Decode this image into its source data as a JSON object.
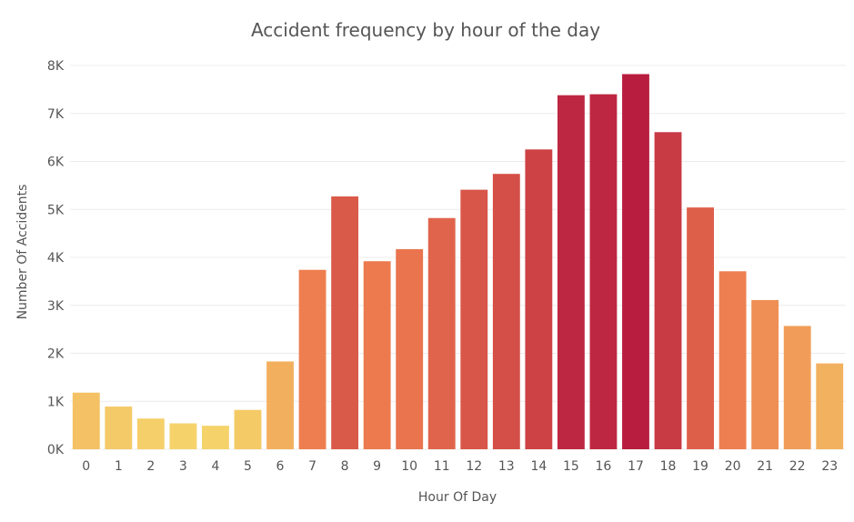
{
  "chart_data": {
    "type": "bar",
    "title": "Accident frequency by hour of the day",
    "xlabel": "Hour Of Day",
    "ylabel": "Number Of Accidents",
    "categories": [
      "0",
      "1",
      "2",
      "3",
      "4",
      "5",
      "6",
      "7",
      "8",
      "9",
      "10",
      "11",
      "12",
      "13",
      "14",
      "15",
      "16",
      "17",
      "18",
      "19",
      "20",
      "21",
      "22",
      "23"
    ],
    "values": [
      1180,
      890,
      640,
      540,
      490,
      820,
      1830,
      3740,
      5270,
      3920,
      4170,
      4820,
      5410,
      5740,
      6250,
      7380,
      7400,
      7820,
      6610,
      5040,
      3710,
      3110,
      2570,
      1790
    ],
    "ylim": [
      0,
      8000
    ],
    "yticks": [
      0,
      1000,
      2000,
      3000,
      4000,
      5000,
      6000,
      7000,
      8000
    ],
    "ytick_labels": [
      "0K",
      "1K",
      "2K",
      "3K",
      "4K",
      "5K",
      "6K",
      "7K",
      "8K"
    ],
    "grid": true,
    "colors": {
      "low": "#f5d36a",
      "mid": "#ee7d4f",
      "high": "#b81d3f",
      "title": "#555555",
      "tick": "#555555",
      "grid": "#ececec"
    }
  }
}
